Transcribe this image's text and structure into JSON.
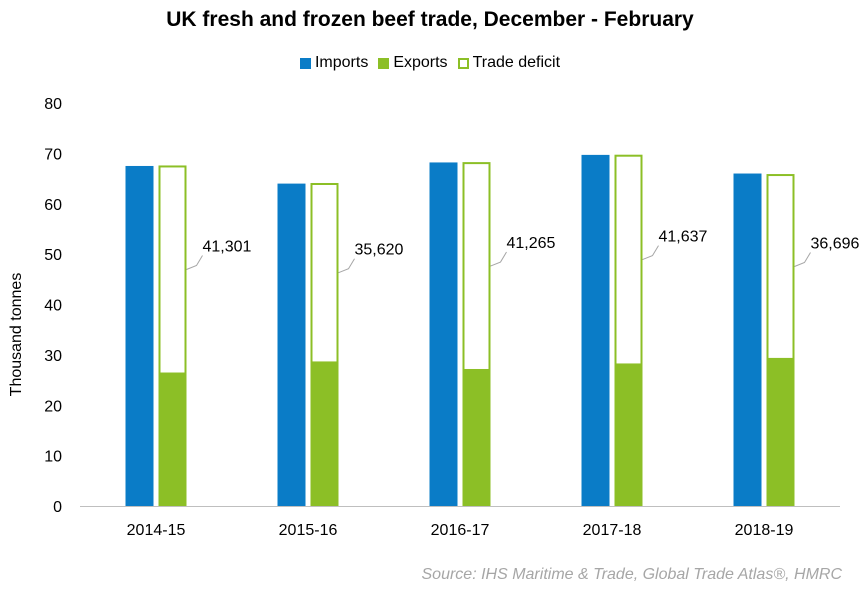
{
  "chart_data": {
    "type": "bar",
    "title": "UK fresh and frozen beef trade, December - February",
    "xlabel": "",
    "ylabel": "Thousand tonnes",
    "ylim": [
      0,
      80
    ],
    "yticks": [
      "0",
      "10",
      "20",
      "30",
      "40",
      "50",
      "60",
      "70",
      "80"
    ],
    "categories": [
      "2014-15",
      "2015-16",
      "2016-17",
      "2017-18",
      "2018-19"
    ],
    "series": [
      {
        "name": "Imports",
        "color": "#0a7cc7",
        "values": [
          67.5,
          64.0,
          68.2,
          69.7,
          66.0
        ]
      },
      {
        "name": "Exports",
        "color": "#8cbf26",
        "values": [
          26.3,
          28.5,
          27.0,
          28.1,
          29.2
        ]
      },
      {
        "name": "Trade deficit",
        "color": "#8cbf26",
        "style": "outline",
        "values": [
          41.301,
          35.62,
          41.265,
          41.637,
          36.696
        ]
      }
    ],
    "data_labels": [
      "41,301",
      "35,620",
      "41,265",
      "41,637",
      "36,696"
    ],
    "legend_position": "top",
    "grid": false
  },
  "source": "Source: IHS Maritime & Trade, Global Trade Atlas®, HMRC"
}
